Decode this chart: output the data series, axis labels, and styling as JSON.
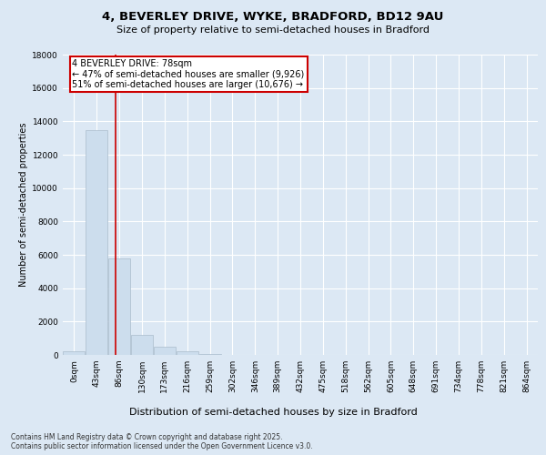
{
  "title_line1": "4, BEVERLEY DRIVE, WYKE, BRADFORD, BD12 9AU",
  "title_line2": "Size of property relative to semi-detached houses in Bradford",
  "xlabel": "Distribution of semi-detached houses by size in Bradford",
  "ylabel": "Number of semi-detached properties",
  "bar_labels": [
    "0sqm",
    "43sqm",
    "86sqm",
    "130sqm",
    "173sqm",
    "216sqm",
    "259sqm",
    "302sqm",
    "346sqm",
    "389sqm",
    "432sqm",
    "475sqm",
    "518sqm",
    "562sqm",
    "605sqm",
    "648sqm",
    "691sqm",
    "734sqm",
    "778sqm",
    "821sqm",
    "864sqm"
  ],
  "bar_values": [
    200,
    13500,
    5800,
    1200,
    500,
    200,
    80,
    0,
    0,
    0,
    0,
    0,
    0,
    0,
    0,
    0,
    0,
    0,
    0,
    0,
    0
  ],
  "bar_color": "#ccdded",
  "bar_edgecolor": "#aabccc",
  "ylim": [
    0,
    18000
  ],
  "yticks": [
    0,
    2000,
    4000,
    6000,
    8000,
    10000,
    12000,
    14000,
    16000,
    18000
  ],
  "property_line_x": 1.82,
  "annotation_text": "4 BEVERLEY DRIVE: 78sqm\n← 47% of semi-detached houses are smaller (9,926)\n51% of semi-detached houses are larger (10,676) →",
  "annotation_box_facecolor": "#ffffff",
  "annotation_border_color": "#cc0000",
  "vline_color": "#cc0000",
  "footer_text": "Contains HM Land Registry data © Crown copyright and database right 2025.\nContains public sector information licensed under the Open Government Licence v3.0.",
  "background_color": "#dce8f4",
  "plot_background": "#dce8f4",
  "grid_color": "#ffffff",
  "title1_fontsize": 9.5,
  "title2_fontsize": 8,
  "ylabel_fontsize": 7,
  "xlabel_fontsize": 8,
  "tick_fontsize": 6.5,
  "annot_fontsize": 7,
  "footer_fontsize": 5.5
}
